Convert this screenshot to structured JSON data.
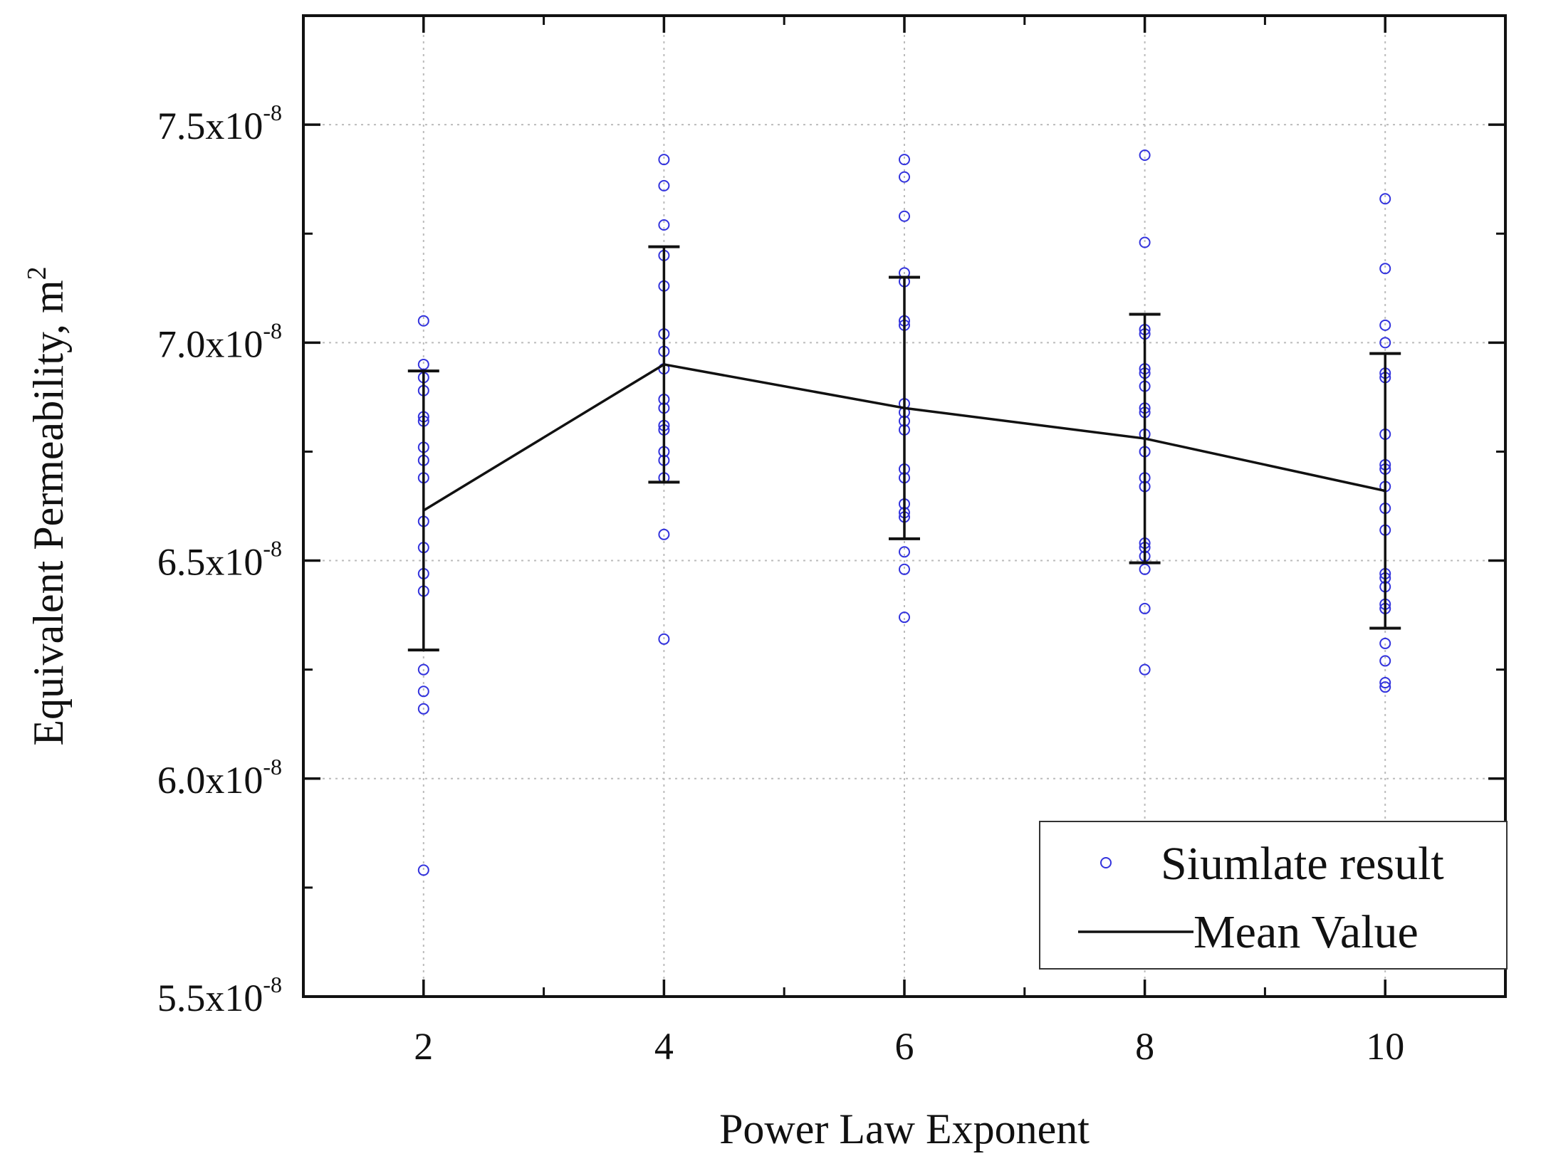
{
  "chart_data": {
    "type": "scatter",
    "title": "",
    "xlabel": "Power Law Exponent",
    "ylabel_main": "Equivalent Permeability, m",
    "ylabel_sup": "2",
    "xlim": [
      1,
      11
    ],
    "ylim": [
      5.5e-08,
      7.75e-08
    ],
    "grid": true,
    "x_ticks": [
      {
        "value": 2,
        "label": "2"
      },
      {
        "value": 4,
        "label": "4"
      },
      {
        "value": 6,
        "label": "6"
      },
      {
        "value": 8,
        "label": "8"
      },
      {
        "value": 10,
        "label": "10"
      }
    ],
    "y_ticks": [
      {
        "value": 5.5e-08,
        "mantissa": "5.5x10",
        "exponent": "-8"
      },
      {
        "value": 6e-08,
        "mantissa": "6.0x10",
        "exponent": "-8"
      },
      {
        "value": 6.5e-08,
        "mantissa": "6.5x10",
        "exponent": "-8"
      },
      {
        "value": 7e-08,
        "mantissa": "7.0x10",
        "exponent": "-8"
      },
      {
        "value": 7.5e-08,
        "mantissa": "7.5x10",
        "exponent": "-8"
      }
    ],
    "legend": {
      "position": "bottom-right",
      "entries": [
        "Siumlate result",
        "Mean Value"
      ]
    },
    "series": [
      {
        "name": "Siumlate result",
        "kind": "points",
        "color": "#3333dd",
        "points": [
          {
            "x": 2,
            "y": 7.05e-08
          },
          {
            "x": 2,
            "y": 6.95e-08
          },
          {
            "x": 2,
            "y": 6.92e-08
          },
          {
            "x": 2,
            "y": 6.89e-08
          },
          {
            "x": 2,
            "y": 6.83e-08
          },
          {
            "x": 2,
            "y": 6.82e-08
          },
          {
            "x": 2,
            "y": 6.76e-08
          },
          {
            "x": 2,
            "y": 6.73e-08
          },
          {
            "x": 2,
            "y": 6.69e-08
          },
          {
            "x": 2,
            "y": 6.59e-08
          },
          {
            "x": 2,
            "y": 6.53e-08
          },
          {
            "x": 2,
            "y": 6.47e-08
          },
          {
            "x": 2,
            "y": 6.43e-08
          },
          {
            "x": 2,
            "y": 6.25e-08
          },
          {
            "x": 2,
            "y": 6.2e-08
          },
          {
            "x": 2,
            "y": 6.16e-08
          },
          {
            "x": 2,
            "y": 5.79e-08
          },
          {
            "x": 4,
            "y": 7.42e-08
          },
          {
            "x": 4,
            "y": 7.36e-08
          },
          {
            "x": 4,
            "y": 7.27e-08
          },
          {
            "x": 4,
            "y": 7.2e-08
          },
          {
            "x": 4,
            "y": 7.13e-08
          },
          {
            "x": 4,
            "y": 7.02e-08
          },
          {
            "x": 4,
            "y": 6.98e-08
          },
          {
            "x": 4,
            "y": 6.94e-08
          },
          {
            "x": 4,
            "y": 6.87e-08
          },
          {
            "x": 4,
            "y": 6.85e-08
          },
          {
            "x": 4,
            "y": 6.81e-08
          },
          {
            "x": 4,
            "y": 6.8e-08
          },
          {
            "x": 4,
            "y": 6.75e-08
          },
          {
            "x": 4,
            "y": 6.73e-08
          },
          {
            "x": 4,
            "y": 6.69e-08
          },
          {
            "x": 4,
            "y": 6.56e-08
          },
          {
            "x": 4,
            "y": 6.32e-08
          },
          {
            "x": 6,
            "y": 7.42e-08
          },
          {
            "x": 6,
            "y": 7.38e-08
          },
          {
            "x": 6,
            "y": 7.29e-08
          },
          {
            "x": 6,
            "y": 7.16e-08
          },
          {
            "x": 6,
            "y": 7.14e-08
          },
          {
            "x": 6,
            "y": 7.05e-08
          },
          {
            "x": 6,
            "y": 7.04e-08
          },
          {
            "x": 6,
            "y": 6.86e-08
          },
          {
            "x": 6,
            "y": 6.84e-08
          },
          {
            "x": 6,
            "y": 6.82e-08
          },
          {
            "x": 6,
            "y": 6.8e-08
          },
          {
            "x": 6,
            "y": 6.71e-08
          },
          {
            "x": 6,
            "y": 6.69e-08
          },
          {
            "x": 6,
            "y": 6.63e-08
          },
          {
            "x": 6,
            "y": 6.61e-08
          },
          {
            "x": 6,
            "y": 6.6e-08
          },
          {
            "x": 6,
            "y": 6.52e-08
          },
          {
            "x": 6,
            "y": 6.48e-08
          },
          {
            "x": 6,
            "y": 6.37e-08
          },
          {
            "x": 8,
            "y": 7.43e-08
          },
          {
            "x": 8,
            "y": 7.23e-08
          },
          {
            "x": 8,
            "y": 7.03e-08
          },
          {
            "x": 8,
            "y": 7.02e-08
          },
          {
            "x": 8,
            "y": 6.94e-08
          },
          {
            "x": 8,
            "y": 6.93e-08
          },
          {
            "x": 8,
            "y": 6.9e-08
          },
          {
            "x": 8,
            "y": 6.85e-08
          },
          {
            "x": 8,
            "y": 6.84e-08
          },
          {
            "x": 8,
            "y": 6.79e-08
          },
          {
            "x": 8,
            "y": 6.75e-08
          },
          {
            "x": 8,
            "y": 6.69e-08
          },
          {
            "x": 8,
            "y": 6.67e-08
          },
          {
            "x": 8,
            "y": 6.54e-08
          },
          {
            "x": 8,
            "y": 6.53e-08
          },
          {
            "x": 8,
            "y": 6.51e-08
          },
          {
            "x": 8,
            "y": 6.48e-08
          },
          {
            "x": 8,
            "y": 6.39e-08
          },
          {
            "x": 8,
            "y": 6.25e-08
          },
          {
            "x": 10,
            "y": 7.33e-08
          },
          {
            "x": 10,
            "y": 7.17e-08
          },
          {
            "x": 10,
            "y": 7.04e-08
          },
          {
            "x": 10,
            "y": 7e-08
          },
          {
            "x": 10,
            "y": 6.93e-08
          },
          {
            "x": 10,
            "y": 6.92e-08
          },
          {
            "x": 10,
            "y": 6.79e-08
          },
          {
            "x": 10,
            "y": 6.72e-08
          },
          {
            "x": 10,
            "y": 6.71e-08
          },
          {
            "x": 10,
            "y": 6.67e-08
          },
          {
            "x": 10,
            "y": 6.62e-08
          },
          {
            "x": 10,
            "y": 6.57e-08
          },
          {
            "x": 10,
            "y": 6.47e-08
          },
          {
            "x": 10,
            "y": 6.46e-08
          },
          {
            "x": 10,
            "y": 6.44e-08
          },
          {
            "x": 10,
            "y": 6.4e-08
          },
          {
            "x": 10,
            "y": 6.39e-08
          },
          {
            "x": 10,
            "y": 6.31e-08
          },
          {
            "x": 10,
            "y": 6.27e-08
          },
          {
            "x": 10,
            "y": 6.22e-08
          },
          {
            "x": 10,
            "y": 6.21e-08
          }
        ]
      },
      {
        "name": "Mean Value",
        "kind": "line_with_errorbars",
        "color": "#111111",
        "x": [
          2,
          4,
          6,
          8,
          10
        ],
        "y": [
          6.615e-08,
          6.95e-08,
          6.85e-08,
          6.78e-08,
          6.66e-08
        ],
        "err_low": [
          6.295e-08,
          6.68e-08,
          6.55e-08,
          6.495e-08,
          6.345e-08
        ],
        "err_high": [
          6.935e-08,
          7.22e-08,
          7.15e-08,
          7.065e-08,
          6.975e-08
        ]
      }
    ]
  }
}
